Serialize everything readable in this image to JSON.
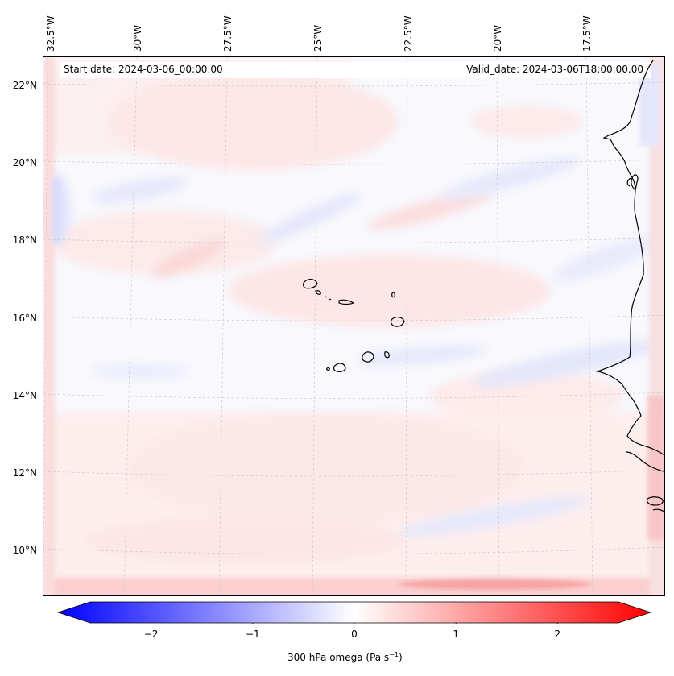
{
  "header": {
    "start_date": "Start date: 2024-03-06_00:00:00",
    "valid_date": "Valid_date: 2024-03-06T18:00:00.00"
  },
  "map": {
    "lon_labels": [
      "32.5°W",
      "30°W",
      "27.5°W",
      "25°W",
      "22.5°W",
      "20°W",
      "17.5°W"
    ],
    "lat_labels": [
      "22°N",
      "20°N",
      "18°N",
      "16°N",
      "14°N",
      "12°N",
      "10°N"
    ],
    "colors": {
      "background": "#f8f8fd",
      "positive_tint": "#fde4e4",
      "negative_tint": "#e4e6fb",
      "coastline": "#000000",
      "gridline": "#b0b0b0"
    }
  },
  "colorbar": {
    "ticks": [
      "−2",
      "−1",
      "0",
      "1",
      "2"
    ],
    "tick_values": [
      -2,
      -1,
      0,
      1,
      2
    ],
    "range": [
      -2.6,
      2.6
    ],
    "label_text": "300 hPa omega (Pa s",
    "label_exponent": "−1",
    "label_suffix": ")",
    "min_color": "#0000ff",
    "mid_color": "#ffffff",
    "max_color": "#ff0000"
  }
}
